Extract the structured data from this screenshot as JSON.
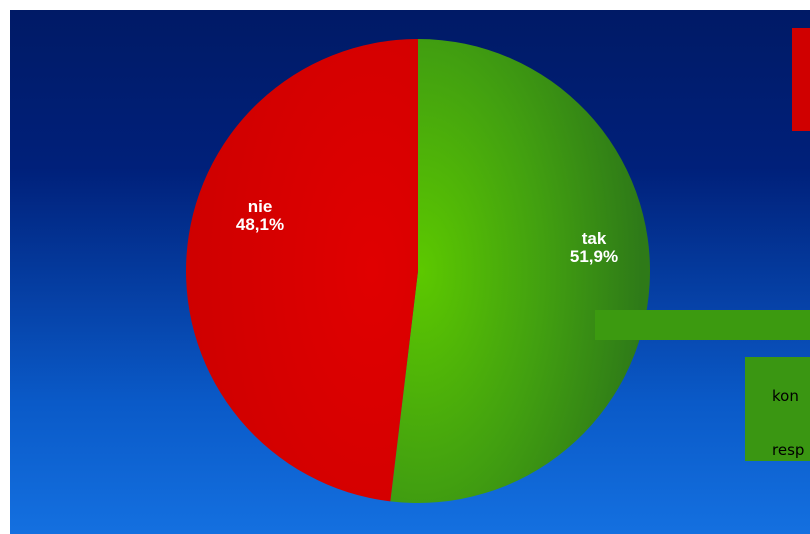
{
  "chart_data": {
    "type": "pie",
    "title": "",
    "slices": [
      {
        "label": "tak",
        "value": 51.9,
        "display": "51,9%",
        "color": "#4aa80c"
      },
      {
        "label": "nie",
        "value": 48.1,
        "display": "48,1%",
        "color": "#dd0000"
      }
    ]
  },
  "side_panel": {
    "line1": "kon",
    "line2": "resp"
  },
  "colors": {
    "background_top": "#001a66",
    "background_bottom": "#1470e0",
    "red_box": "#d00000",
    "green_bar": "#3c9a10"
  }
}
